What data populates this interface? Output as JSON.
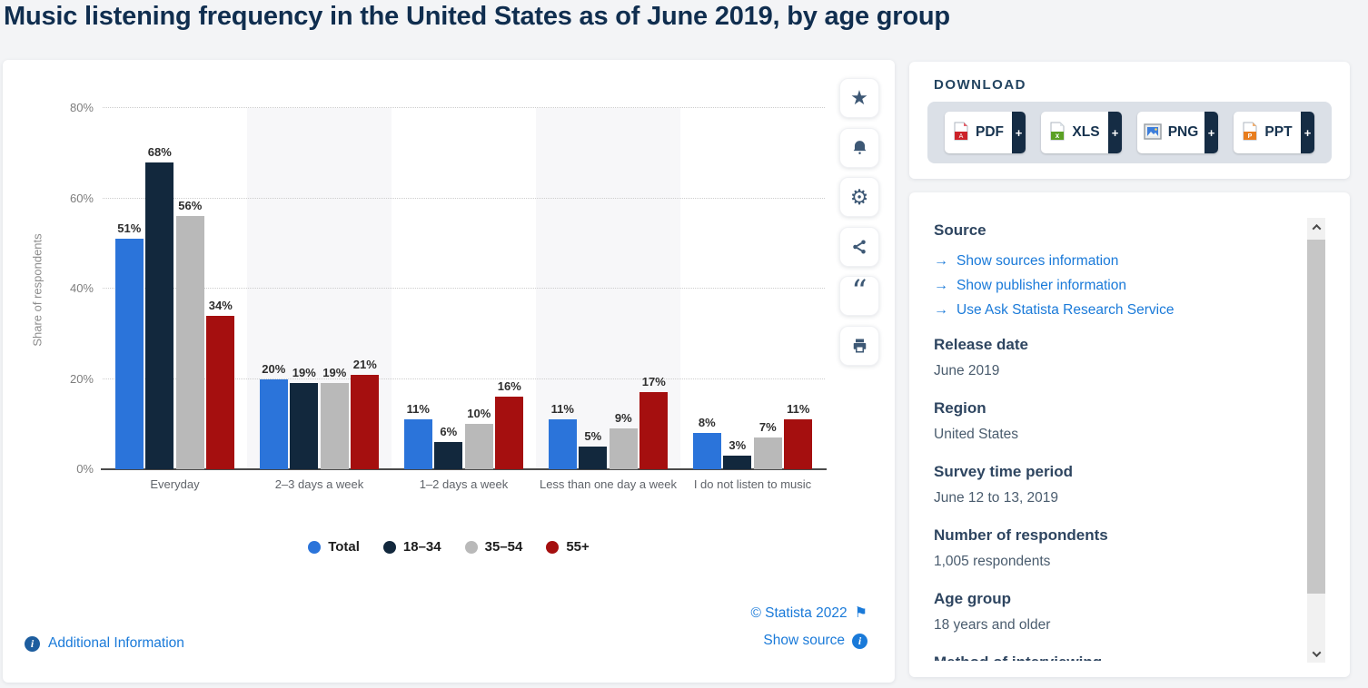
{
  "page_title": "Music listening frequency in the United States as of June 2019, by age group",
  "chart_data": {
    "type": "bar",
    "title": "Music listening frequency in the United States as of June 2019, by age group",
    "xlabel": "",
    "ylabel": "Share of respondents",
    "ylim": [
      0,
      80
    ],
    "ytick_labels": [
      "0%",
      "20%",
      "40%",
      "60%",
      "80%"
    ],
    "grid": "horizontal-dotted",
    "legend_position": "bottom",
    "categories": [
      "Everyday",
      "2–3 days a week",
      "1–2 days a week",
      "Less than one day a week",
      "I do not listen to music"
    ],
    "series": [
      {
        "name": "Total",
        "color": "#2b74da",
        "values": [
          51,
          20,
          11,
          11,
          8
        ]
      },
      {
        "name": "18–34",
        "color": "#12283d",
        "values": [
          68,
          19,
          6,
          5,
          3
        ]
      },
      {
        "name": "35–54",
        "color": "#b9b9b9",
        "values": [
          56,
          19,
          10,
          9,
          7
        ]
      },
      {
        "name": "55+",
        "color": "#a50f0f",
        "values": [
          34,
          21,
          16,
          17,
          11
        ]
      }
    ],
    "value_suffix": "%"
  },
  "toolbar": {
    "icons": [
      "star",
      "bell",
      "gear",
      "share",
      "quote",
      "print"
    ]
  },
  "chart_footer": {
    "additional_info": "Additional Information",
    "copyright": "© Statista 2022",
    "show_source": "Show source"
  },
  "download": {
    "heading": "DOWNLOAD",
    "plus_label": "+",
    "buttons": [
      {
        "label": "PDF",
        "type": "pdf"
      },
      {
        "label": "XLS",
        "type": "xls"
      },
      {
        "label": "PNG",
        "type": "png"
      },
      {
        "label": "PPT",
        "type": "ppt"
      }
    ]
  },
  "details": {
    "source_heading": "Source",
    "source_links": [
      "Show sources information",
      "Show publisher information",
      "Use Ask Statista Research Service"
    ],
    "fields": [
      {
        "label": "Release date",
        "value": "June 2019"
      },
      {
        "label": "Region",
        "value": "United States"
      },
      {
        "label": "Survey time period",
        "value": "June 12 to 13, 2019"
      },
      {
        "label": "Number of respondents",
        "value": "1,005 respondents"
      },
      {
        "label": "Age group",
        "value": "18 years and older"
      },
      {
        "label": "Method of interviewing",
        "value": ""
      }
    ]
  }
}
